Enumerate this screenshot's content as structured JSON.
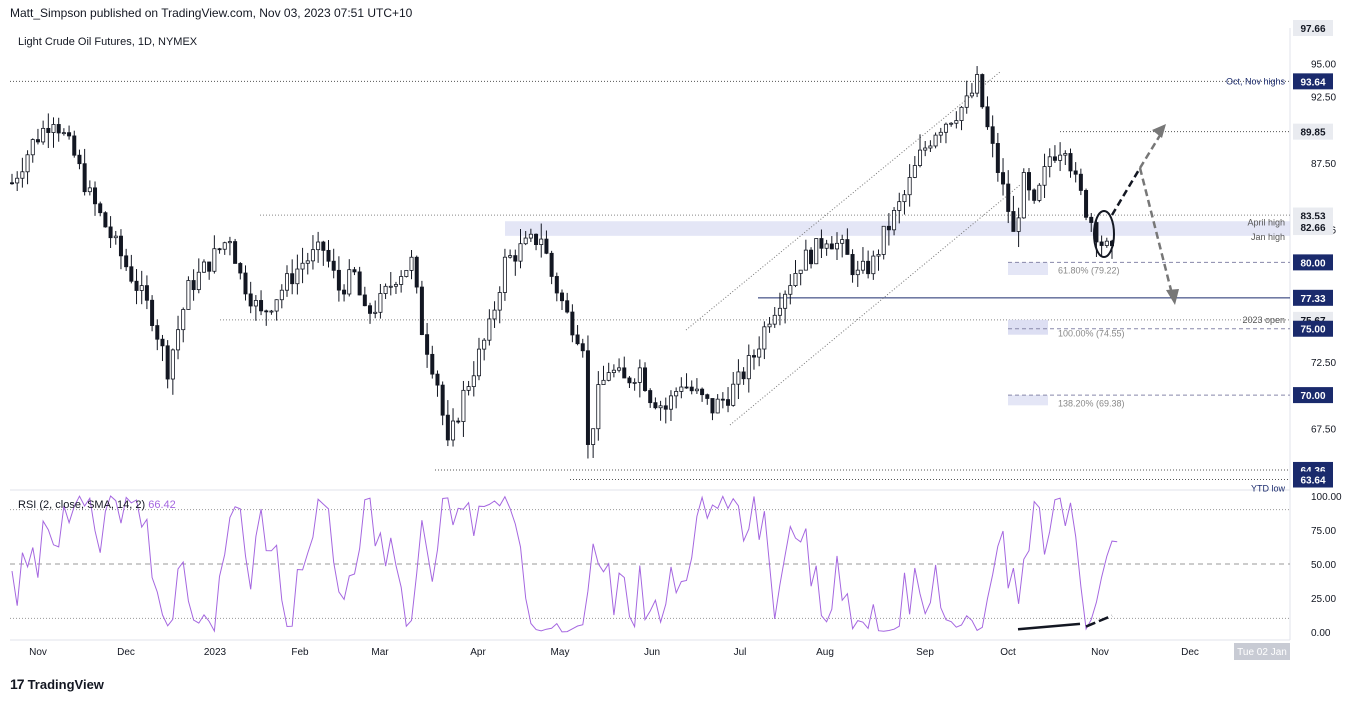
{
  "header": {
    "published": "Matt_Simpson published on TradingView.com, Nov 03, 2023 07:51 UTC+10"
  },
  "footer": {
    "brand": "TradingView",
    "logo_icon": "tradingview-logo-icon"
  },
  "chart_data": [
    {
      "type": "candlestick",
      "title": "Light Crude Oil Futures, 1D, NYMEX",
      "x_labels": [
        "Nov",
        "Dec",
        "2023",
        "Feb",
        "Mar",
        "Apr",
        "May",
        "Jun",
        "Jul",
        "Aug",
        "Sep",
        "Oct",
        "Nov",
        "Dec"
      ],
      "time_label": "Tue 02 Jan",
      "ylim": [
        63,
        97.66
      ],
      "y_ticks": [
        "95.00",
        "92.50",
        "87.50",
        "82.46",
        "72.50",
        "67.50"
      ],
      "price_tags": [
        {
          "value": "97.66",
          "style": "plain"
        },
        {
          "value": "93.64",
          "style": "dark"
        },
        {
          "value": "89.85",
          "style": "plain"
        },
        {
          "value": "83.53",
          "style": "plain"
        },
        {
          "value": "82.66",
          "style": "plain"
        },
        {
          "value": "80.00",
          "style": "dark"
        },
        {
          "value": "77.33",
          "style": "dark"
        },
        {
          "value": "75.67",
          "style": "plain"
        },
        {
          "value": "75.00",
          "style": "dark"
        },
        {
          "value": "70.00",
          "style": "dark"
        },
        {
          "value": "64.36",
          "style": "dark"
        },
        {
          "value": "63.64",
          "style": "dark"
        }
      ],
      "annotations": {
        "oct_nov_highs": "Oct, Nov highs",
        "april_high": "April high",
        "jan_high": "Jan high",
        "fib_618": "61.80% (79.22)",
        "year_open": "2023 open",
        "fib_100": "100.00% (74.55)",
        "fib_1382": "138.20% (69.38)",
        "ytd_low": "YTD low"
      },
      "levels": {
        "oct_nov_highs": 93.64,
        "target_high": 89.85,
        "april_jan_high": 82.66,
        "fib_618": 79.22,
        "support": 77.33,
        "year_open": 75.67,
        "fib_100": 74.55,
        "fib_1382": 69.38,
        "ytd_low_1": 64.36,
        "ytd_low_2": 63.64
      },
      "series": [
        {
          "name": "Light Crude Oil Futures",
          "anchors": [
            [
              0,
              86
            ],
            [
              4,
              89
            ],
            [
              8,
              91
            ],
            [
              12,
              88
            ],
            [
              15,
              85
            ],
            [
              19,
              82
            ],
            [
              23,
              79
            ],
            [
              27,
              76
            ],
            [
              30,
              72
            ],
            [
              34,
              78
            ],
            [
              38,
              80
            ],
            [
              42,
              82
            ],
            [
              44,
              79
            ],
            [
              48,
              76
            ],
            [
              52,
              78
            ],
            [
              56,
              80
            ],
            [
              60,
              81
            ],
            [
              63,
              78
            ],
            [
              66,
              79
            ],
            [
              68,
              76
            ],
            [
              71,
              77
            ],
            [
              74,
              79
            ],
            [
              77,
              80
            ],
            [
              79,
              75
            ],
            [
              82,
              71
            ],
            [
              84,
              66
            ],
            [
              87,
              70
            ],
            [
              90,
              73
            ],
            [
              92,
              75
            ],
            [
              95,
              80
            ],
            [
              98,
              81
            ],
            [
              102,
              82
            ],
            [
              104,
              79
            ],
            [
              107,
              76
            ],
            [
              110,
              74
            ],
            [
              111,
              66
            ],
            [
              113,
              70
            ],
            [
              115,
              72
            ],
            [
              118,
              71
            ],
            [
              121,
              72
            ],
            [
              123,
              70
            ],
            [
              126,
              69
            ],
            [
              129,
              71
            ],
            [
              132,
              70
            ],
            [
              135,
              69
            ],
            [
              138,
              70
            ],
            [
              140,
              71
            ],
            [
              143,
              73
            ],
            [
              146,
              76
            ],
            [
              149,
              78
            ],
            [
              152,
              80
            ],
            [
              155,
              81
            ],
            [
              157,
              82
            ],
            [
              160,
              81
            ],
            [
              163,
              79
            ],
            [
              166,
              80
            ],
            [
              168,
              82
            ],
            [
              172,
              85
            ],
            [
              175,
              88
            ],
            [
              178,
              90
            ],
            [
              181,
              91
            ],
            [
              184,
              92
            ],
            [
              186,
              93.5
            ],
            [
              188,
              90
            ],
            [
              190,
              87
            ],
            [
              192,
              84
            ],
            [
              193,
              82
            ],
            [
              195,
              86
            ],
            [
              197,
              84
            ],
            [
              200,
              88
            ],
            [
              203,
              89
            ],
            [
              205,
              86
            ],
            [
              207,
              84
            ],
            [
              210,
              81.5
            ],
            [
              212,
              80.5
            ]
          ]
        }
      ]
    },
    {
      "type": "line",
      "title": "RSI (2, close, SMA, 14, 2)",
      "last_value": "66.42",
      "ylim": [
        0,
        100
      ],
      "y_ticks": [
        "100.00",
        "75.00",
        "50.00",
        "25.00",
        "0.00"
      ],
      "levels": [
        90,
        50,
        10
      ]
    }
  ],
  "colors": {
    "up": "#131722",
    "down": "#131722",
    "rsi": "#a567e0",
    "dark_tag": "#1a2a6c",
    "band": "#d9dcf2",
    "support_line": "#1a2a6c",
    "arrow": "#777777"
  }
}
